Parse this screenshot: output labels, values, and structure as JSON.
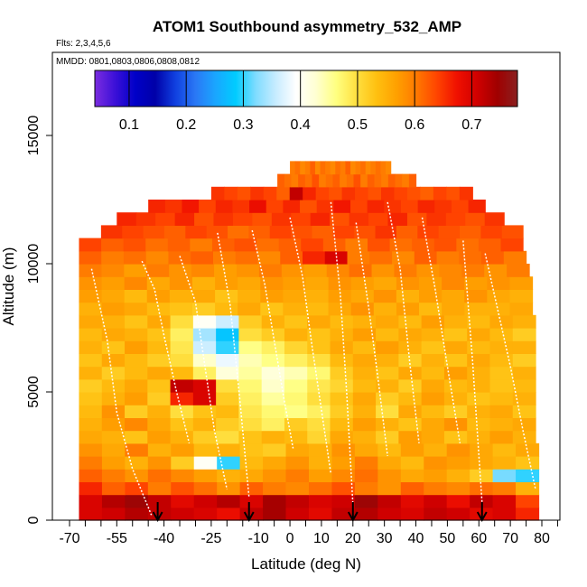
{
  "chart_data": {
    "type": "heatmap",
    "title": "ATOM1 Southbound asymmetry_532_AMP",
    "flights_note": "Flts: 2,3,4,5,6",
    "dates_note": "MMDD: 0801,0803,0806,0808,0812",
    "xlabel": "Latitude (deg N)",
    "ylabel": "Altitude (m)",
    "xlim": [
      -70,
      85
    ],
    "ylim": [
      0,
      17500
    ],
    "x_ticks": [
      -70,
      -55,
      -40,
      -25,
      -10,
      0,
      10,
      20,
      30,
      40,
      50,
      60,
      70,
      80
    ],
    "x_tick_labels": [
      "-70",
      "-55",
      "-40",
      "-25",
      "-10",
      "0",
      "10",
      "20",
      "30",
      "40",
      "50",
      "60",
      "70",
      "80"
    ],
    "x_minor_ticks": [
      -65,
      -60,
      -50,
      -45,
      -35,
      -30,
      -20,
      -15,
      -5,
      5,
      15,
      25,
      35,
      45,
      55,
      65,
      75,
      85
    ],
    "y_ticks": [
      0,
      5000,
      10000,
      15000
    ],
    "y_tick_labels": [
      "0",
      "5000",
      "10000",
      "15000"
    ],
    "colorbar": {
      "range": [
        0.04,
        0.78
      ],
      "ticks": [
        0.1,
        0.2,
        0.3,
        0.4,
        0.5,
        0.6,
        0.7
      ],
      "tick_labels": [
        "0.1",
        "0.2",
        "0.3",
        "0.4",
        "0.5",
        "0.6",
        "0.7"
      ],
      "colors": [
        "#7b2de0",
        "#3c10d8",
        "#0000c8",
        "#0000a8",
        "#1040e0",
        "#2a78f5",
        "#1aa6ff",
        "#00ccff",
        "#7fdcff",
        "#c8ecff",
        "#ffffff",
        "#ffffd0",
        "#ffff80",
        "#ffe040",
        "#ffc010",
        "#ffa000",
        "#ff7800",
        "#ff4400",
        "#f01000",
        "#d00000",
        "#a00000",
        "#8a2020"
      ]
    },
    "flight_arrow_latitudes": [
      -42,
      -13,
      20,
      61
    ],
    "altitude_level_min_m": 0,
    "altitude_level_max_m": 13500,
    "altitude_level_step_m": 500,
    "level_lat_extent": [
      [
        -67,
        79
      ],
      [
        -67,
        79
      ],
      [
        -67,
        79
      ],
      [
        -67,
        79
      ],
      [
        -67,
        79
      ],
      [
        -67,
        79
      ],
      [
        -67,
        78
      ],
      [
        -67,
        78
      ],
      [
        -67,
        78
      ],
      [
        -67,
        78
      ],
      [
        -67,
        78
      ],
      [
        -67,
        78
      ],
      [
        -67,
        78
      ],
      [
        -67,
        78
      ],
      [
        -67,
        78
      ],
      [
        -67,
        78
      ],
      [
        -67,
        77
      ],
      [
        -67,
        77
      ],
      [
        -67,
        77
      ],
      [
        -67,
        76
      ],
      [
        -67,
        75
      ],
      [
        -67,
        74
      ],
      [
        -60,
        74
      ],
      [
        -55,
        68
      ],
      [
        -45,
        62
      ],
      [
        -25,
        58
      ],
      [
        -4,
        40
      ],
      [
        0,
        32
      ]
    ],
    "grid_values": [
      [
        0.7,
        0.71,
        0.73,
        0.72,
        0.71,
        0.7,
        0.68,
        0.72,
        0.74,
        0.71,
        0.69,
        0.72,
        0.73,
        0.71,
        0.7,
        0.72,
        0.71,
        0.69,
        0.7,
        0.66
      ],
      [
        0.7,
        0.73,
        0.75,
        0.72,
        0.69,
        0.71,
        0.73,
        0.7,
        0.74,
        0.72,
        0.7,
        0.71,
        0.75,
        0.72,
        0.69,
        0.71,
        0.68,
        0.72,
        0.7,
        0.64
      ],
      [
        0.66,
        0.62,
        0.64,
        0.6,
        0.63,
        0.61,
        0.58,
        0.62,
        0.6,
        0.59,
        0.61,
        0.63,
        0.6,
        0.58,
        0.62,
        0.6,
        0.59,
        0.61,
        0.6,
        0.55
      ],
      [
        0.62,
        0.6,
        0.58,
        0.61,
        0.59,
        0.57,
        0.55,
        0.56,
        0.58,
        0.6,
        0.57,
        0.59,
        0.61,
        0.58,
        0.56,
        0.57,
        0.55,
        0.52,
        0.32,
        0.3
      ],
      [
        0.6,
        0.57,
        0.55,
        0.58,
        0.52,
        0.4,
        0.3,
        0.54,
        0.56,
        0.58,
        0.55,
        0.57,
        0.6,
        0.56,
        0.54,
        0.58,
        0.57,
        0.56,
        0.55,
        0.53
      ],
      [
        0.58,
        0.56,
        0.6,
        0.55,
        0.57,
        0.54,
        0.55,
        0.53,
        0.52,
        0.56,
        0.55,
        0.58,
        0.56,
        0.54,
        0.57,
        0.55,
        0.58,
        0.56,
        0.54,
        0.56
      ],
      [
        0.56,
        0.55,
        0.53,
        0.57,
        0.55,
        0.52,
        0.5,
        0.53,
        0.55,
        0.54,
        0.51,
        0.56,
        0.55,
        0.52,
        0.57,
        0.56,
        0.53,
        0.55,
        0.57,
        0.55
      ],
      [
        0.55,
        0.57,
        0.59,
        0.56,
        0.53,
        0.55,
        0.52,
        0.5,
        0.48,
        0.52,
        0.5,
        0.54,
        0.57,
        0.55,
        0.53,
        0.56,
        0.58,
        0.54,
        0.55,
        0.56
      ],
      [
        0.54,
        0.58,
        0.52,
        0.55,
        0.5,
        0.53,
        0.54,
        0.49,
        0.47,
        0.46,
        0.48,
        0.52,
        0.55,
        0.5,
        0.56,
        0.54,
        0.52,
        0.55,
        0.56,
        0.53
      ],
      [
        0.53,
        0.55,
        0.57,
        0.52,
        0.66,
        0.7,
        0.52,
        0.48,
        0.45,
        0.47,
        0.5,
        0.53,
        0.56,
        0.52,
        0.54,
        0.57,
        0.55,
        0.53,
        0.54,
        0.55
      ],
      [
        0.52,
        0.54,
        0.56,
        0.53,
        0.72,
        0.7,
        0.5,
        0.47,
        0.43,
        0.46,
        0.49,
        0.51,
        0.54,
        0.55,
        0.52,
        0.56,
        0.54,
        0.55,
        0.53,
        0.54
      ],
      [
        0.55,
        0.52,
        0.54,
        0.56,
        0.54,
        0.48,
        0.42,
        0.45,
        0.42,
        0.44,
        0.47,
        0.52,
        0.55,
        0.53,
        0.56,
        0.54,
        0.57,
        0.55,
        0.53,
        0.55
      ],
      [
        0.53,
        0.56,
        0.54,
        0.52,
        0.5,
        0.43,
        0.38,
        0.44,
        0.46,
        0.48,
        0.5,
        0.54,
        0.56,
        0.55,
        0.52,
        0.55,
        0.53,
        0.56,
        0.54,
        0.52
      ],
      [
        0.55,
        0.53,
        0.57,
        0.54,
        0.49,
        0.36,
        0.3,
        0.46,
        0.48,
        0.51,
        0.53,
        0.56,
        0.54,
        0.57,
        0.55,
        0.53,
        0.56,
        0.54,
        0.55,
        0.55
      ],
      [
        0.54,
        0.56,
        0.55,
        0.53,
        0.48,
        0.34,
        0.28,
        0.5,
        0.52,
        0.55,
        0.53,
        0.55,
        0.57,
        0.54,
        0.56,
        0.55,
        0.53,
        0.56,
        0.54,
        0.52
      ],
      [
        0.56,
        0.55,
        0.53,
        0.56,
        0.5,
        0.4,
        0.36,
        0.52,
        0.55,
        0.53,
        0.56,
        0.54,
        0.55,
        0.56,
        0.54,
        0.57,
        0.55,
        0.54,
        0.56,
        0.55
      ],
      [
        0.55,
        0.57,
        0.56,
        0.54,
        0.53,
        0.52,
        0.54,
        0.56,
        0.53,
        0.55,
        0.54,
        0.56,
        0.58,
        0.55,
        0.57,
        0.54,
        0.56,
        0.55,
        0.55,
        0.56
      ],
      [
        0.57,
        0.56,
        0.54,
        0.57,
        0.55,
        0.56,
        0.53,
        0.55,
        0.57,
        0.56,
        0.55,
        0.57,
        0.56,
        0.58,
        0.55,
        0.57,
        0.56,
        0.58,
        0.56,
        0.55
      ],
      [
        0.58,
        0.57,
        0.59,
        0.56,
        0.58,
        0.55,
        0.57,
        0.56,
        0.58,
        0.57,
        0.56,
        0.58,
        0.57,
        0.56,
        0.58,
        0.57,
        0.59,
        0.57,
        0.58,
        0.57
      ],
      [
        0.6,
        0.59,
        0.57,
        0.6,
        0.58,
        0.59,
        0.57,
        0.58,
        0.6,
        0.58,
        0.57,
        0.59,
        0.61,
        0.58,
        0.6,
        0.58,
        0.59,
        0.6,
        0.58,
        0.6
      ],
      [
        0.62,
        0.6,
        0.61,
        0.59,
        0.61,
        0.62,
        0.6,
        0.61,
        0.59,
        0.62,
        0.66,
        0.7,
        0.6,
        0.61,
        0.59,
        0.62,
        0.6,
        0.61,
        0.62,
        0.6
      ],
      [
        0.64,
        0.62,
        0.63,
        0.61,
        0.62,
        0.6,
        0.62,
        0.63,
        0.61,
        0.62,
        0.64,
        0.62,
        0.6,
        0.63,
        0.61,
        0.62,
        0.63,
        0.61,
        0.62,
        0.64
      ],
      [
        0.65,
        0.64,
        0.63,
        0.62,
        0.64,
        0.63,
        0.61,
        0.62,
        0.64,
        0.63,
        0.62,
        0.64,
        0.63,
        0.65,
        0.62,
        0.64,
        0.63,
        0.62,
        0.64,
        0.63
      ],
      [
        0.66,
        0.65,
        0.64,
        0.66,
        0.63,
        0.65,
        0.64,
        0.63,
        0.65,
        0.64,
        0.66,
        0.63,
        0.65,
        0.64,
        0.66,
        0.63,
        0.65,
        0.64,
        0.63,
        0.65
      ],
      [
        0.66,
        0.65,
        0.67,
        0.64,
        0.66,
        0.65,
        0.68,
        0.64,
        0.66,
        0.63,
        0.65,
        0.67,
        0.64,
        0.66,
        0.65,
        0.64,
        0.66,
        0.65,
        0.64,
        0.66
      ],
      [
        0.65,
        0.64,
        0.63,
        0.65,
        0.64,
        0.62,
        0.72,
        0.66,
        0.64,
        0.63,
        0.65,
        0.64,
        0.63,
        0.65,
        0.64,
        0.63,
        0.62,
        0.64,
        0.63,
        0.65
      ],
      [
        0.62,
        0.61,
        0.6,
        0.62,
        0.61,
        0.63,
        0.6,
        0.61,
        0.62,
        0.6,
        0.61,
        0.63,
        0.6,
        0.62,
        0.61,
        0.6,
        0.62,
        0.61,
        0.6,
        0.62
      ],
      [
        0.6,
        0.61,
        0.59,
        0.6,
        0.62,
        0.59,
        0.61,
        0.6,
        0.59,
        0.61,
        0.6,
        0.62,
        0.59,
        0.6,
        0.61,
        0.59,
        0.6,
        0.61,
        0.6,
        0.59
      ]
    ],
    "profile_traces": [
      {
        "x": [
          -63,
          -58,
          -55,
          -50,
          -46,
          -44
        ],
        "y": [
          9800,
          7000,
          4200,
          2000,
          800,
          200
        ]
      },
      {
        "x": [
          -47,
          -43,
          -40,
          -36,
          -32
        ],
        "y": [
          10100,
          9000,
          7200,
          5000,
          3000
        ]
      },
      {
        "x": [
          -35,
          -30,
          -27,
          -24,
          -20
        ],
        "y": [
          10300,
          8500,
          6000,
          3500,
          1200
        ]
      },
      {
        "x": [
          -23,
          -19,
          -16,
          -13
        ],
        "y": [
          11200,
          8400,
          4800,
          900
        ]
      },
      {
        "x": [
          -12,
          -8,
          -5,
          -2,
          1
        ],
        "y": [
          11300,
          9200,
          7000,
          4800,
          2800
        ]
      },
      {
        "x": [
          0,
          4,
          7,
          10,
          13
        ],
        "y": [
          11800,
          9500,
          6800,
          4300,
          1800
        ]
      },
      {
        "x": [
          13,
          16,
          18,
          20
        ],
        "y": [
          12400,
          8800,
          5000,
          600
        ]
      },
      {
        "x": [
          21,
          25,
          28,
          31
        ],
        "y": [
          11600,
          8300,
          5500,
          2500
        ]
      },
      {
        "x": [
          31,
          35,
          38,
          41
        ],
        "y": [
          12400,
          9800,
          6200,
          3000
        ]
      },
      {
        "x": [
          42,
          46,
          50,
          54
        ],
        "y": [
          11800,
          9100,
          6000,
          3000
        ]
      },
      {
        "x": [
          55,
          58,
          61
        ],
        "y": [
          10900,
          6200,
          700
        ]
      },
      {
        "x": [
          62,
          66,
          70,
          74,
          78
        ],
        "y": [
          10400,
          8200,
          6000,
          3500,
          1200
        ]
      }
    ]
  }
}
